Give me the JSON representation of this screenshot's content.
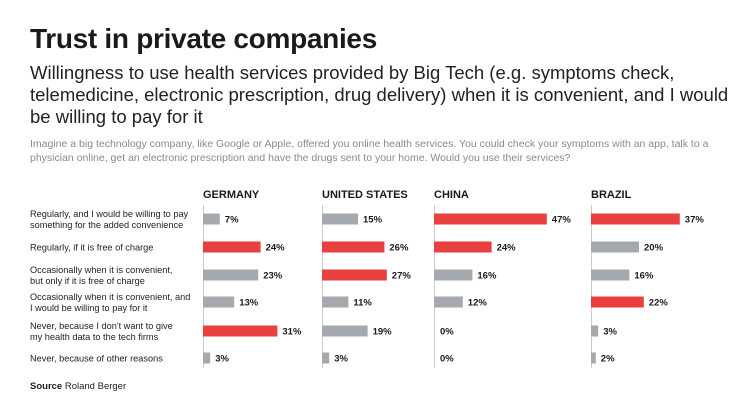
{
  "header": {
    "title": "Trust in private companies",
    "subtitle": "Willingness to use health services provided by Big Tech (e.g. symptoms check, telemedicine, electronic prescription, drug delivery) when it is convenient, and I would be willing to pay for it",
    "question": "Imagine a big technology company, like Google or Apple, offered you online health services. You could check your symptoms with an app, talk to a physician online, get an electronic prescription and have the drugs sent to your home. Would you use their services?"
  },
  "source": {
    "label": "Source",
    "text": "Roland Berger"
  },
  "colors": {
    "highlight": "#e8403f",
    "default": "#a4a9ad"
  },
  "chart_data": {
    "type": "bar",
    "orientation": "horizontal",
    "unit": "%",
    "categories": [
      [
        "Regularly, and I would be willing to pay",
        "something for the added convenience"
      ],
      [
        "Regularly, if it is free of charge"
      ],
      [
        "Occasionally when it is convenient,",
        "but only if it is free of charge"
      ],
      [
        "Occasionally when it is convenient, and",
        "I would be willing to pay for it"
      ],
      [
        "Never, because I don't want to give",
        "my health data to the tech firms"
      ],
      [
        "Never, because of other reasons"
      ]
    ],
    "series": [
      {
        "name": "GERMANY",
        "values": [
          7,
          24,
          23,
          13,
          31,
          3
        ],
        "highlight": [
          false,
          true,
          false,
          false,
          true,
          false
        ]
      },
      {
        "name": "UNITED STATES",
        "values": [
          15,
          26,
          27,
          11,
          19,
          3
        ],
        "highlight": [
          false,
          true,
          true,
          false,
          false,
          false
        ]
      },
      {
        "name": "CHINA",
        "values": [
          47,
          24,
          16,
          12,
          0,
          0
        ],
        "highlight": [
          true,
          true,
          false,
          false,
          false,
          false
        ]
      },
      {
        "name": "BRAZIL",
        "values": [
          37,
          20,
          16,
          22,
          3,
          2
        ],
        "highlight": [
          true,
          false,
          false,
          true,
          false,
          false
        ]
      }
    ]
  }
}
